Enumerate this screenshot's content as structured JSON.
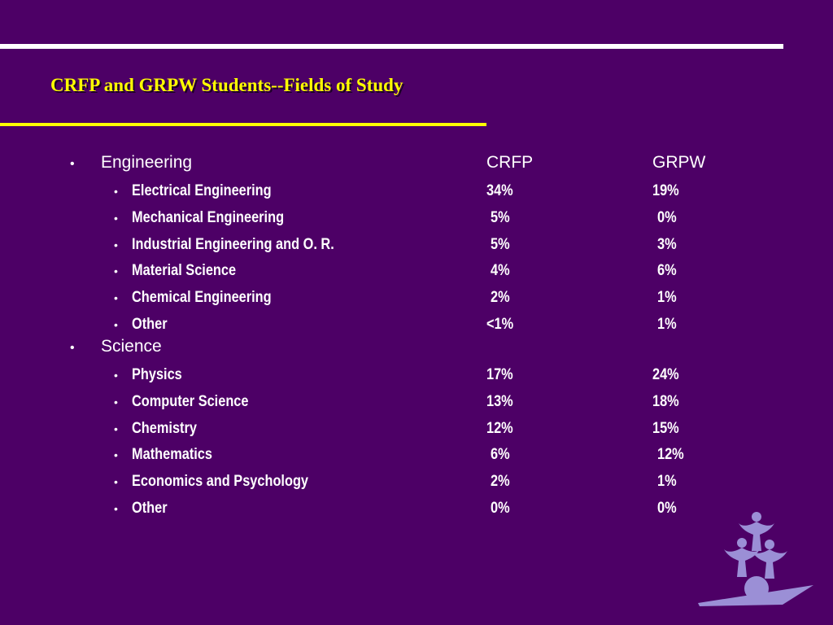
{
  "title": "CRFP and GRPW Students--Fields of Study",
  "bullet_major": "•",
  "bullet_minor": "•",
  "sections": [
    {
      "heading": "Engineering",
      "col_crfp": "CRFP",
      "col_grpw": "GRPW",
      "items": [
        {
          "label": "Electrical Engineering",
          "crfp": "34%",
          "grpw": "19%"
        },
        {
          "label": "Mechanical Engineering",
          "crfp": "5%",
          "grpw": "0%"
        },
        {
          "label": "Industrial Engineering and O. R.",
          "crfp": "5%",
          "grpw": "3%"
        },
        {
          "label": "Material Science",
          "crfp": "4%",
          "grpw": "6%"
        },
        {
          "label": "Chemical Engineering",
          "crfp": "2%",
          "grpw": "1%"
        },
        {
          "label": "Other",
          "crfp": "<1%",
          "grpw": "1%"
        }
      ]
    },
    {
      "heading": "Science",
      "items": [
        {
          "label": "Physics",
          "crfp": "17%",
          "grpw": "24%"
        },
        {
          "label": "Computer Science",
          "crfp": "13%",
          "grpw": "18%"
        },
        {
          "label": "Chemistry",
          "crfp": "12%",
          "grpw": "15%"
        },
        {
          "label": "Mathematics",
          "crfp": "6%",
          "grpw": "12%"
        },
        {
          "label": "Economics and Psychology",
          "crfp": "2%",
          "grpw": "1%"
        },
        {
          "label": "Other",
          "crfp": "0%",
          "grpw": "0%"
        }
      ]
    }
  ],
  "colors": {
    "background": "#4d0066",
    "title": "#ffff00",
    "text": "#ffffff",
    "logo": "#9b8fd6"
  },
  "logo_icon": "people-pyramid-logo"
}
